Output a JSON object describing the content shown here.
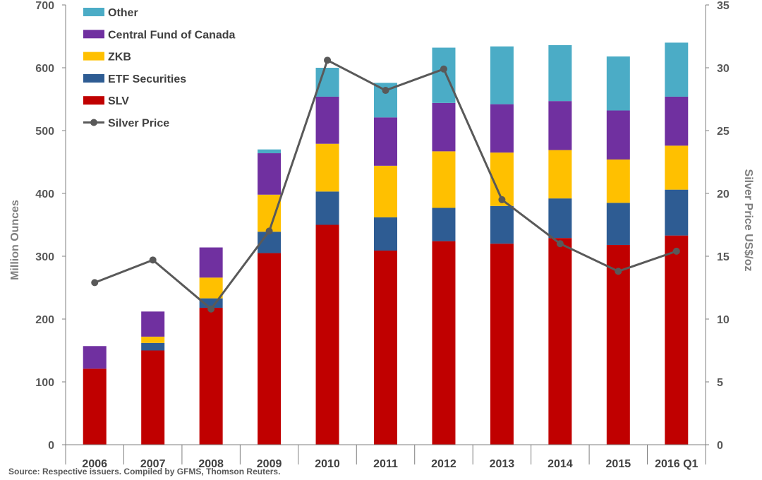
{
  "chart_data": {
    "type": "bar",
    "stacked": true,
    "categories": [
      "2006",
      "2007",
      "2008",
      "2009",
      "2010",
      "2011",
      "2012",
      "2013",
      "2014",
      "2015",
      "2016 Q1"
    ],
    "series": [
      {
        "name": "SLV",
        "color": "#c00000",
        "values": [
          121,
          150,
          218,
          305,
          350,
          309,
          324,
          320,
          329,
          318,
          333
        ]
      },
      {
        "name": "ETF Securities",
        "color": "#2e5c93",
        "values": [
          0,
          12,
          15,
          34,
          53,
          53,
          53,
          60,
          63,
          67,
          73
        ]
      },
      {
        "name": "ZKB",
        "color": "#ffc000",
        "values": [
          0,
          10,
          33,
          59,
          76,
          82,
          90,
          85,
          77,
          69,
          70
        ]
      },
      {
        "name": "Central Fund of Canada",
        "color": "#7030a0",
        "values": [
          36,
          40,
          48,
          66,
          75,
          77,
          77,
          77,
          78,
          78,
          78
        ]
      },
      {
        "name": "Other",
        "color": "#4bacc6",
        "values": [
          0,
          0,
          0,
          6,
          46,
          55,
          88,
          92,
          89,
          86,
          86
        ]
      }
    ],
    "line_series": {
      "name": "Silver Price",
      "color": "#595959",
      "axis": "right",
      "values": [
        12.9,
        14.7,
        10.8,
        17.0,
        30.6,
        28.2,
        29.9,
        19.5,
        16.0,
        13.8,
        15.4
      ]
    },
    "ylabel": "Million Ounces",
    "y2label": "Silver Price US$/oz",
    "ylim": [
      0,
      700
    ],
    "y2lim": [
      0,
      35
    ],
    "yticks": [
      "0",
      "100",
      "200",
      "300",
      "400",
      "500",
      "600",
      "700"
    ],
    "y2ticks": [
      "0",
      "5",
      "10",
      "15",
      "20",
      "25",
      "30",
      "35"
    ],
    "legend_order": [
      "Other",
      "Central Fund of Canada",
      "ZKB",
      "ETF Securities",
      "SLV",
      "Silver Price"
    ],
    "legend_position": "top-left",
    "grid": false,
    "source": "Source: Respective issuers. Compiled by GFMS, Thomson Reuters."
  }
}
